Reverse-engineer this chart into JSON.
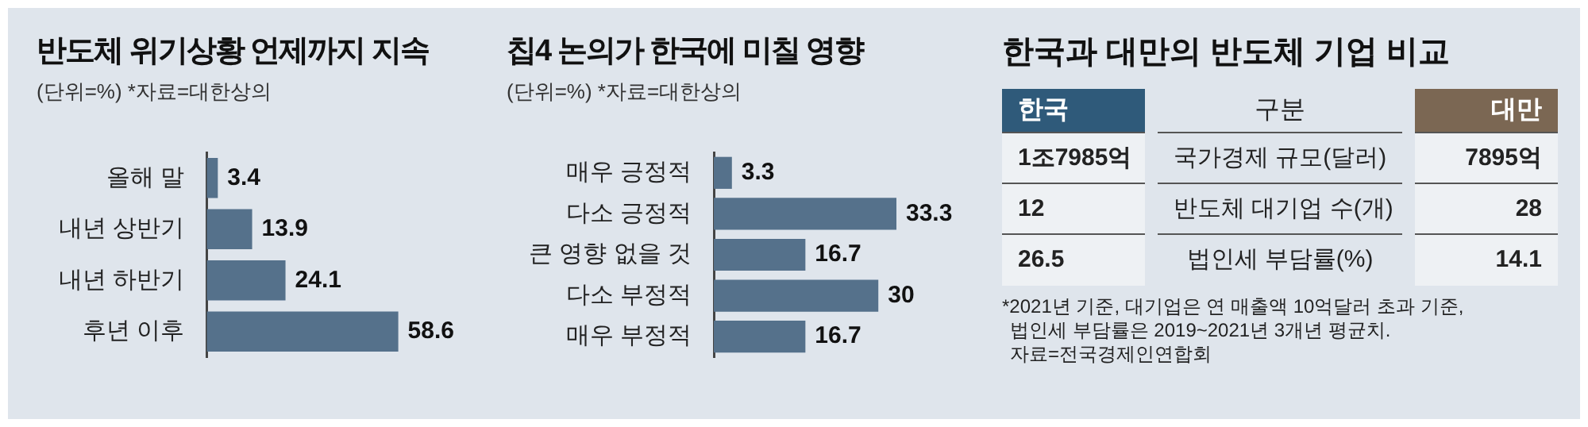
{
  "chart_data": [
    {
      "type": "bar",
      "title": "반도체 위기상황 언제까지 지속",
      "subtitle": "(단위=%) *자료=대한상의",
      "orientation": "horizontal",
      "categories": [
        "올해 말",
        "내년 상반기",
        "내년 하반기",
        "후년 이후"
      ],
      "values": [
        3.4,
        13.9,
        24.1,
        58.6
      ],
      "color": "#55718b",
      "data_labels": true
    },
    {
      "type": "bar",
      "title": "칩4 논의가 한국에 미칠 영향",
      "subtitle": "(단위=%) *자료=대한상의",
      "orientation": "horizontal",
      "categories": [
        "매우 긍정적",
        "다소 긍정적",
        "큰 영향 없을 것",
        "다소 부정적",
        "매우 부정적"
      ],
      "values": [
        3.3,
        33.3,
        16.7,
        30,
        16.7
      ],
      "color": "#55718b",
      "data_labels": true
    },
    {
      "type": "other",
      "title": "한국과 대만의 반도체 기업 비교",
      "annotations": [
        "한국",
        "구분",
        "대만",
        "1조7985억",
        "국가경제 규모(달러)",
        "7895억",
        "12",
        "반도체 대기업 수(개)",
        "28",
        "26.5",
        "법인세 부담률(%)",
        "14.1",
        "*2021년 기준, 대기업은 연 매출액 10억달러 초과 기준,",
        "법인세 부담률은 2019~2021년 3개년 평균치.",
        "자료=전국경제인연합회"
      ]
    }
  ]
}
